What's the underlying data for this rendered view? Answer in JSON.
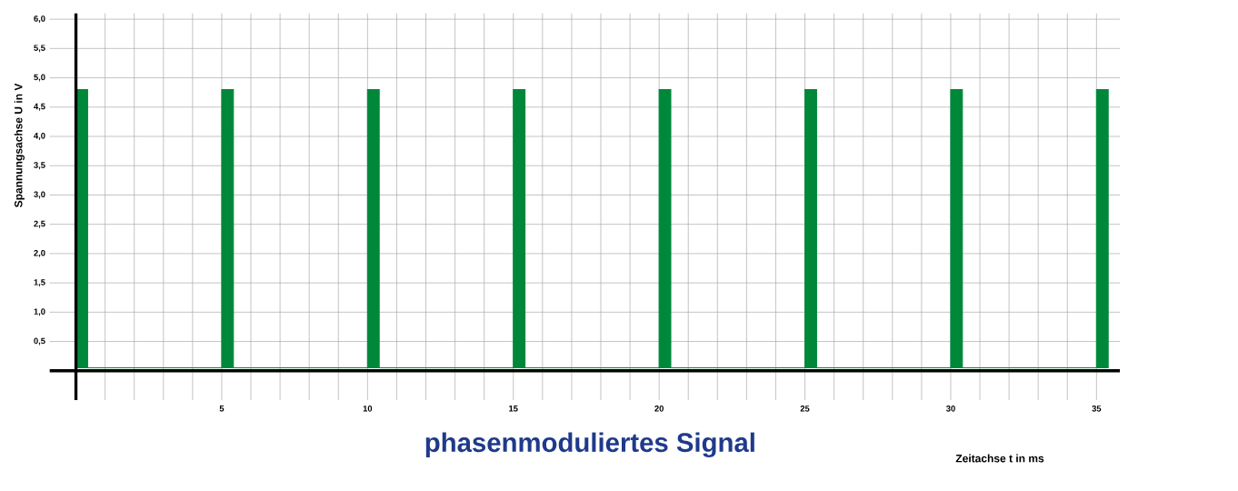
{
  "chart_data": {
    "type": "area",
    "title": "phasenmoduliertes Signal",
    "xlabel": "Zeitachse t in ms",
    "ylabel": "Spannungsachse U in V",
    "x": [
      0,
      0,
      0.4,
      0.4,
      5,
      5,
      5.4,
      5.4,
      10,
      10,
      10.4,
      10.4,
      15,
      15,
      15.4,
      15.4,
      20,
      20,
      20.4,
      20.4,
      25,
      25,
      25.4,
      25.4,
      30,
      30,
      30.4,
      30.4,
      35,
      35,
      35.4,
      35.4
    ],
    "values": [
      0.05,
      4.8,
      4.8,
      0.05,
      0.05,
      4.8,
      4.8,
      0.05,
      0.05,
      4.8,
      4.8,
      0.05,
      0.05,
      4.8,
      4.8,
      0.05,
      0.05,
      4.8,
      4.8,
      0.05,
      0.05,
      4.8,
      4.8,
      0.05,
      0.05,
      4.8,
      4.8,
      0.05,
      0.05,
      4.8,
      4.8,
      0.05
    ],
    "color": "#00883a",
    "xlim": [
      -0.9,
      35.8
    ],
    "ylim": [
      -0.5,
      6.1
    ],
    "xticks": [
      {
        "value": 0,
        "label": null
      },
      {
        "value": 1,
        "label": null
      },
      {
        "value": 2,
        "label": null
      },
      {
        "value": 3,
        "label": null
      },
      {
        "value": 4,
        "label": null
      },
      5,
      {
        "value": 6,
        "label": null
      },
      {
        "value": 7,
        "label": null
      },
      {
        "value": 8,
        "label": null
      },
      {
        "value": 9,
        "label": null
      },
      10,
      {
        "value": 11,
        "label": null
      },
      {
        "value": 12,
        "label": null
      },
      {
        "value": 13,
        "label": null
      },
      {
        "value": 14,
        "label": null
      },
      15,
      {
        "value": 16,
        "label": null
      },
      {
        "value": 17,
        "label": null
      },
      {
        "value": 18,
        "label": null
      },
      {
        "value": 19,
        "label": null
      },
      20,
      {
        "value": 21,
        "label": null
      },
      {
        "value": 22,
        "label": null
      },
      {
        "value": 23,
        "label": null
      },
      {
        "value": 24,
        "label": null
      },
      25,
      {
        "value": 26,
        "label": null
      },
      {
        "value": 27,
        "label": null
      },
      {
        "value": 28,
        "label": null
      },
      {
        "value": 29,
        "label": null
      },
      30,
      {
        "value": 31,
        "label": null
      },
      {
        "value": 32,
        "label": null
      },
      {
        "value": 33,
        "label": null
      },
      {
        "value": 34,
        "label": null
      },
      35
    ],
    "yticks": [
      {
        "value": 0.5,
        "label": "0,5"
      },
      {
        "value": 1,
        "label": "1,0"
      },
      {
        "value": 1.5,
        "label": "1,5"
      },
      {
        "value": 2,
        "label": "2,0"
      },
      {
        "value": 2.5,
        "label": "2,5"
      },
      {
        "value": 3,
        "label": "3,0"
      },
      {
        "value": 3.5,
        "label": "3,5"
      },
      {
        "value": 4,
        "label": "4,0"
      },
      {
        "value": 4.5,
        "label": "4,5"
      },
      {
        "value": 5,
        "label": "5,0"
      },
      {
        "value": 5.5,
        "label": "5,5"
      },
      {
        "value": 6,
        "label": "6,0"
      }
    ],
    "grid": true
  }
}
